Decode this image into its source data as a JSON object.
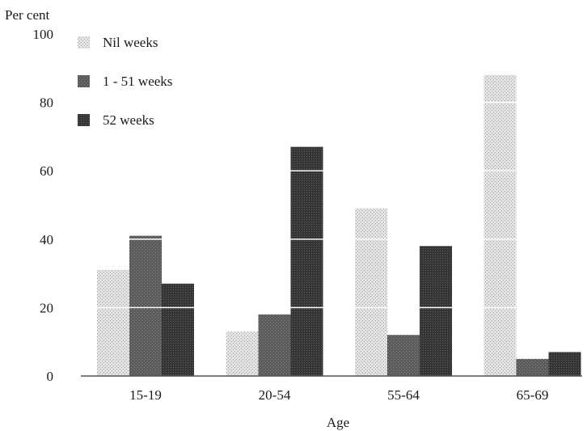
{
  "chart_data": {
    "type": "bar",
    "ylabel": "Per cent",
    "xlabel": "Age",
    "ylim": [
      0,
      100
    ],
    "yticks": [
      0,
      20,
      40,
      60,
      80,
      100
    ],
    "categories": [
      "15-19",
      "20-54",
      "55-64",
      "65-69"
    ],
    "series": [
      {
        "name": "Nil weeks",
        "values": [
          31,
          13,
          49,
          88
        ],
        "color": "#cfcfcf",
        "pattern": "light-stipple"
      },
      {
        "name": "1 - 51 weeks",
        "values": [
          41,
          18,
          12,
          5
        ],
        "color": "#555555",
        "pattern": "dark-stipple"
      },
      {
        "name": "52 weeks",
        "values": [
          27,
          67,
          38,
          7
        ],
        "color": "#3a3a3a",
        "pattern": "dense-dark"
      }
    ],
    "gridlines": "white lines across bars at each y tick",
    "legend_position": "top-left"
  }
}
